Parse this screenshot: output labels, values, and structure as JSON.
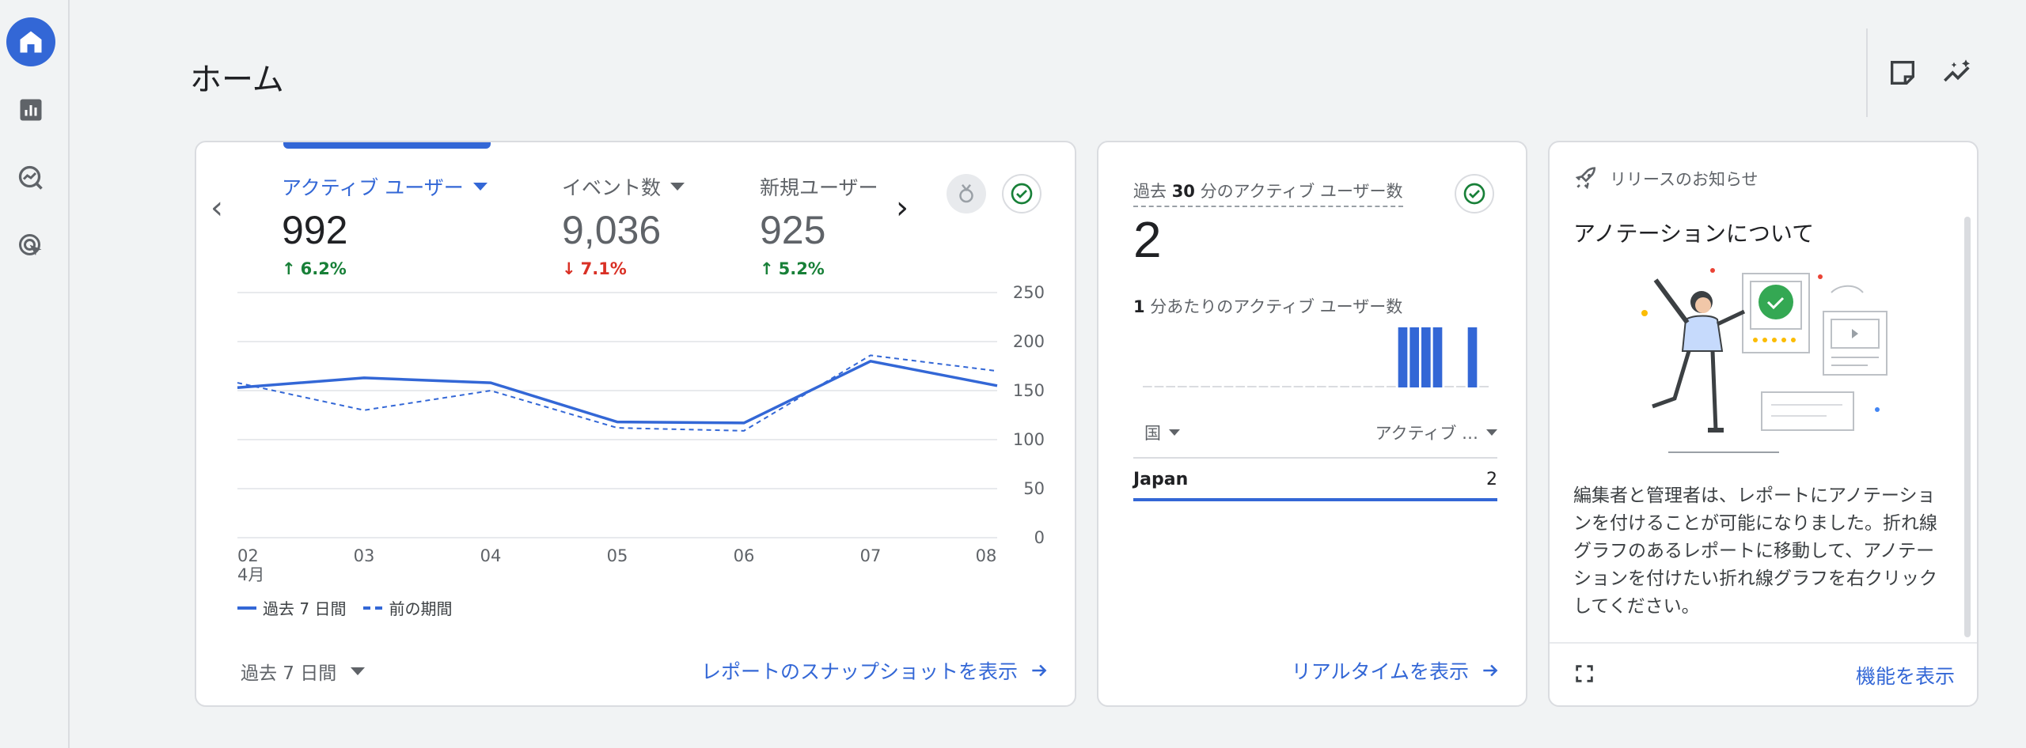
{
  "page": {
    "title": "ホーム"
  },
  "rail": {
    "items": [
      {
        "name": "home-icon",
        "active": true
      },
      {
        "name": "reports-icon",
        "active": false
      },
      {
        "name": "explore-icon",
        "active": false
      },
      {
        "name": "advertising-icon",
        "active": false
      }
    ]
  },
  "header": {
    "icons": [
      "annotation-note-icon",
      "insights-sparkle-icon"
    ]
  },
  "overview": {
    "metrics": [
      {
        "label": "アクティブ ユーザー",
        "value": "992",
        "delta": "6.2%",
        "direction": "up",
        "selected": true
      },
      {
        "label": "イベント数",
        "value": "9,036",
        "delta": "7.1%",
        "direction": "down",
        "selected": false
      },
      {
        "label": "新規ユーザー",
        "value": "925",
        "delta": "5.2%",
        "direction": "up",
        "selected": false
      }
    ],
    "legend": {
      "current": "過去 7 日間",
      "previous": "前の期間"
    },
    "date_range": "過去 7 日間",
    "link": "レポートのスナップショットを表示"
  },
  "chart_data": {
    "type": "line",
    "x": [
      "02",
      "03",
      "04",
      "05",
      "06",
      "07",
      "08"
    ],
    "x_sublabel": "4月",
    "ylim": [
      0,
      250
    ],
    "y_ticks": [
      "250",
      "200",
      "150",
      "100",
      "50",
      "0"
    ],
    "grid": true,
    "series": [
      {
        "name": "過去 7 日間",
        "style": "solid",
        "values": [
          153,
          163,
          158,
          118,
          117,
          180,
          155
        ]
      },
      {
        "name": "前の期間",
        "style": "dashed",
        "values": [
          158,
          130,
          150,
          112,
          109,
          186,
          170
        ]
      }
    ],
    "colors": {
      "line": "#3367d6",
      "grid": "#e8eaed",
      "axis_text": "#5f6368"
    }
  },
  "realtime": {
    "label_prefix": "過去 ",
    "label_bold": "30",
    "label_suffix": " 分のアクティブ ユーザー数",
    "value": "2",
    "sub_bold": "1",
    "sub_suffix": " 分あたりのアクティブ ユーザー数",
    "minute_bars": [
      0,
      0,
      0,
      0,
      0,
      0,
      0,
      0,
      0,
      0,
      0,
      0,
      0,
      0,
      0,
      0,
      0,
      0,
      0,
      0,
      0,
      0,
      1,
      1,
      1,
      1,
      0,
      0,
      1,
      0
    ],
    "table": {
      "col1": "国",
      "col2": "アクティブ …",
      "rows": [
        {
          "country": "Japan",
          "count": "2"
        }
      ]
    },
    "link": "リアルタイムを表示"
  },
  "notice": {
    "header": "リリースのお知らせ",
    "title": "アノテーションについて",
    "body": "編集者と管理者は、レポートにアノテーションを付けることが可能になりました。折れ線グラフのあるレポートに移動して、アノテーションを付けたい折れ線グラフを右クリックしてください。",
    "link": "機能を表示"
  },
  "colors": {
    "accent": "#3367d6",
    "up": "#188038",
    "down": "#d93025"
  }
}
